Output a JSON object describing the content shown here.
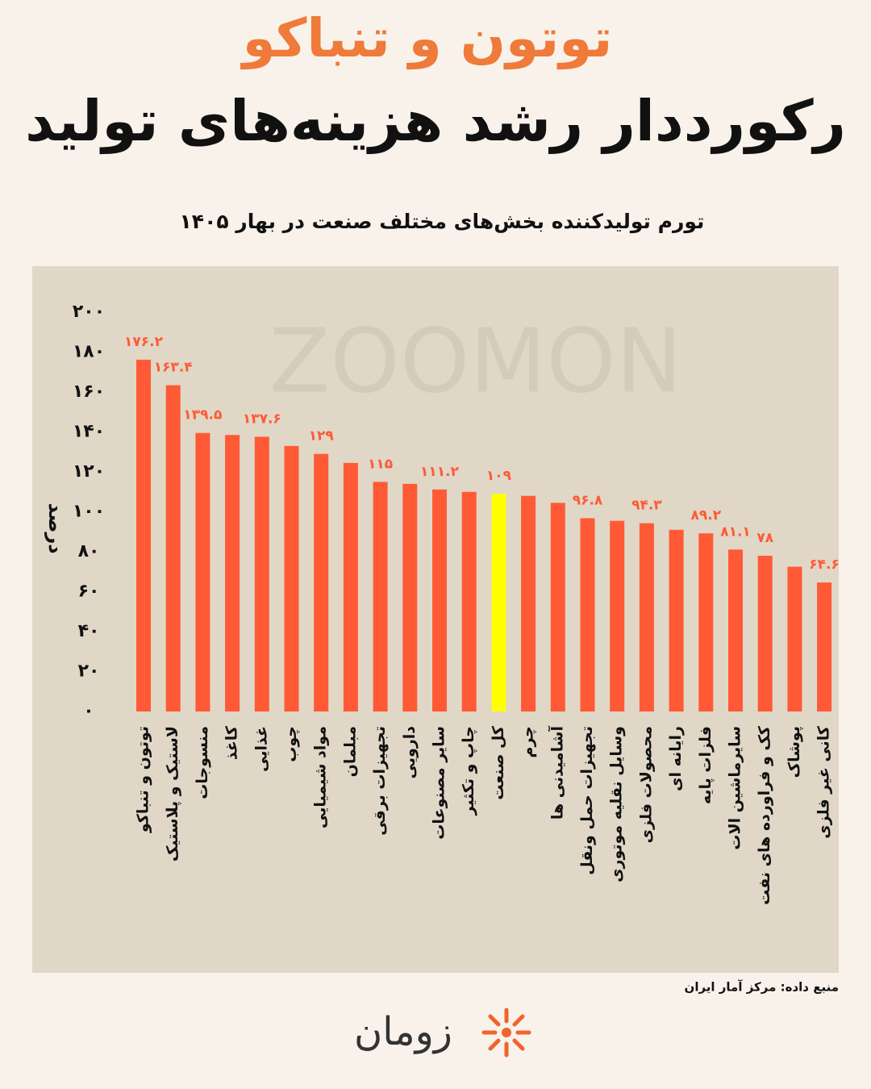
{
  "chart_data": {
    "type": "bar",
    "heading": "توتون و تنباکو",
    "title": "رکورددار رشد هزینه‌های تولید",
    "subtitle": "تورم تولیدکننده بخش‌های مختلف صنعت در بهار ۱۴۰۵",
    "y_label": "درصد",
    "source": "منبع داده: مرکز آمار ایران",
    "watermark": "ZOOMON",
    "logo": "زومان",
    "categories": [
      "توتون و تنباکو",
      "لاستیک و پلاستیک",
      "منسوجات",
      "کاغذ",
      "غذایی",
      "چوب",
      "مواد شیمیایی",
      "مبلمان",
      "تجهیزات برقی",
      "دارویی",
      "سایر مصنوعات",
      "چاپ و تکثیر",
      "کل صنعت",
      "چرم",
      "آشامیدنی ها",
      "تجهیزات حمل ونقل",
      "وسایل نقلیه موتوری",
      "محصولات فلزی",
      "رایانه ای",
      "فلزات پایه",
      "سایرماشین الات",
      "کک و فراورده های نفت",
      "پوشاک",
      "کانی غیر فلزی"
    ],
    "values": [
      176.2,
      163.4,
      139.5,
      138.5,
      137.6,
      133,
      129,
      124.5,
      115,
      114,
      111.2,
      110,
      109,
      108,
      104.5,
      96.8,
      95.5,
      94.3,
      91,
      89.2,
      81.1,
      78,
      72.5,
      64.6
    ],
    "value_labels": [
      "۱۷۶.۲",
      "۱۶۳.۴",
      "۱۳۹.۵",
      null,
      "۱۳۷.۶",
      null,
      "۱۲۹",
      null,
      "۱۱۵",
      null,
      "۱۱۱.۲",
      null,
      "۱۰۹",
      null,
      null,
      "۹۶.۸",
      null,
      "۹۴.۳",
      null,
      "۸۹.۲",
      "۸۱.۱",
      "۷۸",
      null,
      "۶۴.۶"
    ],
    "colors": [
      "#ff5a35",
      "#ff5a35",
      "#ff5a35",
      "#ff5a35",
      "#ff5a35",
      "#ff5a35",
      "#ff5a35",
      "#ff5a35",
      "#ff5a35",
      "#ff5a35",
      "#ff5a35",
      "#ff5a35",
      "#ffff00",
      "#ff5a35",
      "#ff5a35",
      "#ff5a35",
      "#ff5a35",
      "#ff5a35",
      "#ff5a35",
      "#ff5a35",
      "#ff5a35",
      "#ff5a35",
      "#ff5a35",
      "#ff5a35"
    ],
    "ylim": [
      0,
      200
    ],
    "yticks": [
      {
        "value": 0,
        "label": "۰"
      },
      {
        "value": 20,
        "label": "۲۰"
      },
      {
        "value": 40,
        "label": "۴۰"
      },
      {
        "value": 60,
        "label": "۶۰"
      },
      {
        "value": 80,
        "label": "۸۰"
      },
      {
        "value": 100,
        "label": "۱۰۰"
      },
      {
        "value": 120,
        "label": "۱۲۰"
      },
      {
        "value": 140,
        "label": "۱۴۰"
      },
      {
        "value": 160,
        "label": "۱۶۰"
      },
      {
        "value": 180,
        "label": "۱۸۰"
      },
      {
        "value": 200,
        "label": "۲۰۰"
      }
    ],
    "grid": false
  }
}
